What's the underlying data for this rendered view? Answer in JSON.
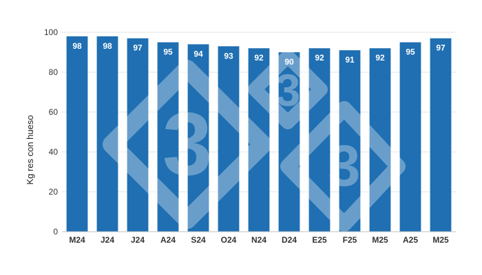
{
  "chart_data": {
    "type": "bar",
    "categories": [
      "M24",
      "J24",
      "J24",
      "A24",
      "S24",
      "O24",
      "N24",
      "D24",
      "E25",
      "F25",
      "M25",
      "A25",
      "M25"
    ],
    "values": [
      98,
      98,
      97,
      95,
      94,
      93,
      92,
      90,
      92,
      91,
      92,
      95,
      97
    ],
    "ylabel": "Kg res con hueso",
    "xlabel": "",
    "ylim": [
      0,
      100
    ],
    "yticks": [
      0,
      20,
      40,
      60,
      80,
      100
    ],
    "grid": true,
    "legend": "none",
    "data_labels": true
  },
  "colors": {
    "bar": "#1f6fb2",
    "grid": "#e3e3e3",
    "bar_label": "#ffffff",
    "watermark": "#ffffff"
  },
  "watermark": {
    "icon": "three-diamond-logo-icon",
    "glyph": "3"
  }
}
